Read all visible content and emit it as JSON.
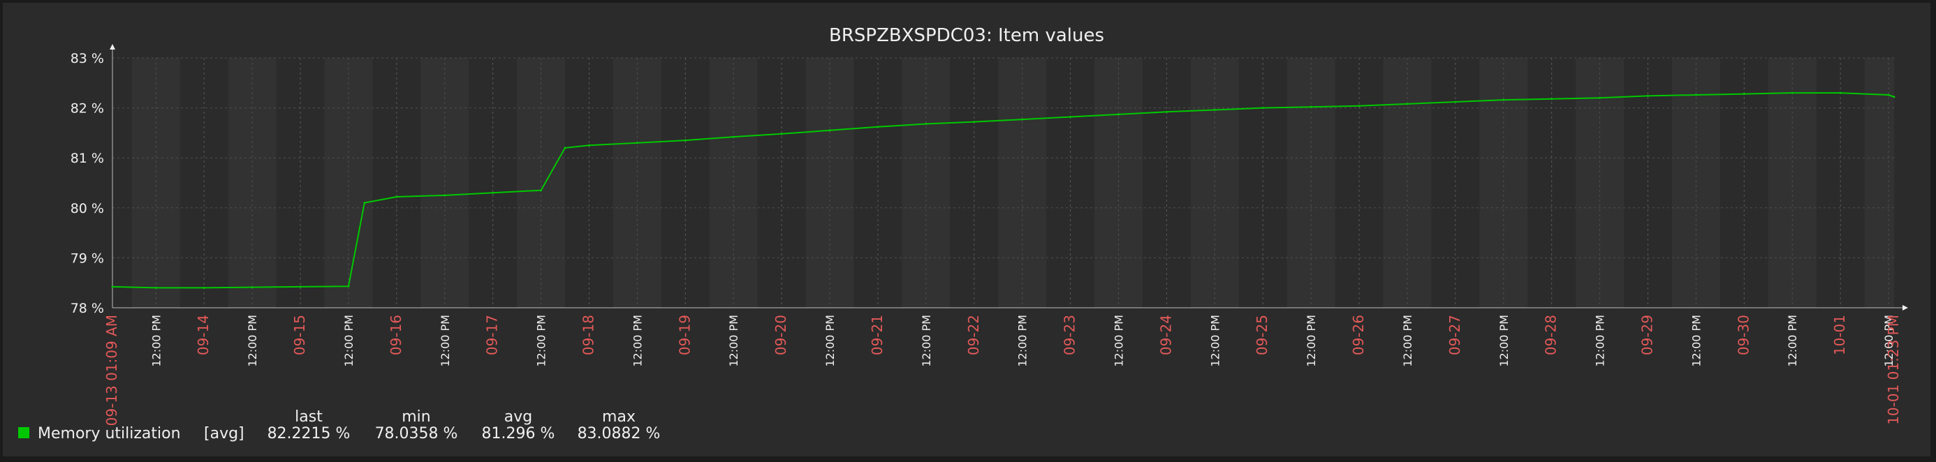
{
  "chart_data": {
    "type": "line",
    "title": "BRSPZBXSPDC03: Item values",
    "ylim": [
      78,
      83
    ],
    "y_unit": " %",
    "y_ticks": [
      "78 %",
      "79 %",
      "80 %",
      "81 %",
      "82 %",
      "83 %"
    ],
    "x_start_label": "09-13 01:09 AM",
    "x_end_label": "10-01 01:23 PM",
    "x_tick_labels": [
      {
        "day": "09-14",
        "noon": "12:00 PM"
      },
      {
        "day": "09-15",
        "noon": "12:00 PM"
      },
      {
        "day": "09-16",
        "noon": "12:00 PM"
      },
      {
        "day": "09-17",
        "noon": "12:00 PM"
      },
      {
        "day": "09-18",
        "noon": "12:00 PM"
      },
      {
        "day": "09-19",
        "noon": "12:00 PM"
      },
      {
        "day": "09-20",
        "noon": "12:00 PM"
      },
      {
        "day": "09-21",
        "noon": "12:00 PM"
      },
      {
        "day": "09-22",
        "noon": "12:00 PM"
      },
      {
        "day": "09-23",
        "noon": "12:00 PM"
      },
      {
        "day": "09-24",
        "noon": "12:00 PM"
      },
      {
        "day": "09-25",
        "noon": "12:00 PM"
      },
      {
        "day": "09-26",
        "noon": "12:00 PM"
      },
      {
        "day": "09-27",
        "noon": "12:00 PM"
      },
      {
        "day": "09-28",
        "noon": "12:00 PM"
      },
      {
        "day": "09-29",
        "noon": "12:00 PM"
      },
      {
        "day": "09-30",
        "noon": "12:00 PM"
      },
      {
        "day": "10-01",
        "noon": "12:00 PM"
      }
    ],
    "grid": true,
    "series": [
      {
        "name": "Memory utilization",
        "agg": "[avg]",
        "color": "#00c800",
        "x": [
          "09-13 01:09 AM",
          "09-13 12:00 PM",
          "09-14 12:00 AM",
          "09-14 12:00 PM",
          "09-15 12:00 AM",
          "09-15 12:00 PM",
          "09-15 04:00 PM",
          "09-16 12:00 AM",
          "09-16 12:00 PM",
          "09-17 12:00 AM",
          "09-17 12:00 PM",
          "09-17 06:00 PM",
          "09-18 12:00 AM",
          "09-18 12:00 PM",
          "09-19 12:00 AM",
          "09-19 12:00 PM",
          "09-20 12:00 AM",
          "09-20 12:00 PM",
          "09-21 12:00 AM",
          "09-21 12:00 PM",
          "09-22 12:00 AM",
          "09-22 12:00 PM",
          "09-23 12:00 AM",
          "09-23 12:00 PM",
          "09-24 12:00 AM",
          "09-24 12:00 PM",
          "09-25 12:00 AM",
          "09-25 12:00 PM",
          "09-26 12:00 AM",
          "09-26 12:00 PM",
          "09-27 12:00 AM",
          "09-27 12:00 PM",
          "09-28 12:00 AM",
          "09-28 12:00 PM",
          "09-29 12:00 AM",
          "09-29 12:00 PM",
          "09-30 12:00 AM",
          "09-30 12:00 PM",
          "10-01 12:00 AM",
          "10-01 12:00 PM",
          "10-01 01:23 PM"
        ],
        "values": [
          78.42,
          78.4,
          78.4,
          78.41,
          78.42,
          78.43,
          80.1,
          80.22,
          80.25,
          80.3,
          80.35,
          81.2,
          81.25,
          81.3,
          81.35,
          81.42,
          81.48,
          81.55,
          81.62,
          81.68,
          81.72,
          81.77,
          81.82,
          81.87,
          81.92,
          81.96,
          82.0,
          82.02,
          82.04,
          82.08,
          82.12,
          82.16,
          82.18,
          82.2,
          82.24,
          82.26,
          82.28,
          82.3,
          82.3,
          82.26,
          82.22
        ]
      }
    ],
    "legend": {
      "headers": {
        "last": "last",
        "min": "min",
        "avg": "avg",
        "max": "max"
      },
      "last": "82.2215 %",
      "min": "78.0358 %",
      "avg": "81.296 %",
      "max": "83.0882 %"
    }
  }
}
